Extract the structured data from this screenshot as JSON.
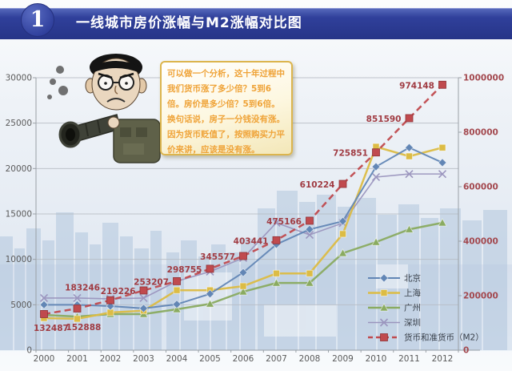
{
  "header": {
    "badge": "1",
    "title": "一线城市房价涨幅与M2涨幅对比图"
  },
  "quote": {
    "para1": "可以做一个分析，这十年过程中我们货币涨了多少倍？5到6倍。房价是多少倍？5到6倍。换句话说，房子一分钱没有涨。",
    "para2": "因为货币贬值了，按照购买力平价来讲，应该是没有涨。"
  },
  "chart_data": {
    "type": "line",
    "categories": [
      "2000",
      "2001",
      "2002",
      "2003",
      "2004",
      "2005",
      "2006",
      "2007",
      "2008",
      "2009",
      "2010",
      "2011",
      "2012"
    ],
    "left_axis": {
      "min": 0,
      "max": 30000,
      "step": 5000,
      "ticks": [
        "0",
        "5000",
        "10000",
        "15000",
        "20000",
        "25000",
        "30000"
      ],
      "color": "#5a5a5a"
    },
    "right_axis": {
      "min": 0,
      "max": 1000000,
      "step": 200000,
      "ticks": [
        "0",
        "200000",
        "400000",
        "600000",
        "800000",
        "1000000"
      ],
      "color": "#a3484e"
    },
    "grid": true,
    "legend_position": "right-middle",
    "series": [
      {
        "name": "北京",
        "axis": "left",
        "marker": "diamond",
        "color": "#6286b5",
        "width": 2,
        "values": [
          5000,
          5000,
          4850,
          4600,
          5050,
          6200,
          8550,
          11650,
          13300,
          14200,
          20200,
          22300,
          20650
        ]
      },
      {
        "name": "上海",
        "axis": "left",
        "marker": "square",
        "color": "#dcbc45",
        "width": 2.5,
        "values": [
          3530,
          3450,
          4150,
          4350,
          6600,
          6600,
          7050,
          8450,
          8450,
          12800,
          22400,
          21350,
          22300
        ]
      },
      {
        "name": "广州",
        "axis": "left",
        "marker": "triangle",
        "color": "#8aab61",
        "width": 2.5,
        "values": [
          3880,
          3700,
          3970,
          3970,
          4500,
          5100,
          6440,
          7400,
          7400,
          10680,
          11900,
          13300,
          14030
        ]
      },
      {
        "name": "深圳",
        "axis": "left",
        "marker": "x",
        "color": "#9b95be",
        "width": 1.6,
        "values": [
          5740,
          5740,
          5650,
          5740,
          7590,
          8650,
          10150,
          14030,
          12700,
          14000,
          19060,
          19400,
          19400
        ]
      },
      {
        "name": "货币和准货币（M2）",
        "axis": "right",
        "marker": "m2square",
        "color": "#c04a4e",
        "width": 2.5,
        "dashed": true,
        "values": [
          132487,
          152888,
          183246,
          219226,
          253207,
          298755,
          345577,
          403441,
          475166,
          610224,
          725851,
          851590,
          974148
        ],
        "labels": [
          "132487",
          "152888",
          "183246",
          "219226",
          "253207",
          "298755",
          "345577",
          "403441",
          "475166",
          "610224",
          "725851",
          "851590",
          "974148"
        ],
        "label_color": "#a03b42"
      }
    ]
  }
}
